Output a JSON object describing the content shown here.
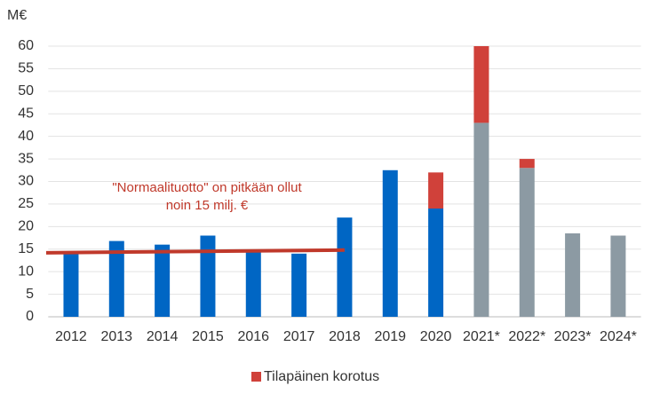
{
  "chart_data": {
    "type": "bar",
    "stacked": true,
    "y_label": "M€",
    "categories": [
      "2012",
      "2013",
      "2014",
      "2015",
      "2016",
      "2017",
      "2018",
      "2019",
      "2020",
      "2021*",
      "2022*",
      "2023*",
      "2024*"
    ],
    "series": [
      {
        "colors": [
          "#0066c4",
          "#0066c4",
          "#0066c4",
          "#0066c4",
          "#0066c4",
          "#0066c4",
          "#0066c4",
          "#0066c4",
          "#0066c4",
          "#8c9aa3",
          "#8c9aa3",
          "#8c9aa3",
          "#8c9aa3"
        ],
        "values": [
          14,
          16.8,
          16,
          18,
          14.5,
          14,
          22,
          32.5,
          24,
          43,
          33,
          18.5,
          18
        ]
      },
      {
        "name": "Tilapäinen korotus",
        "color": "#d0413a",
        "values": [
          null,
          null,
          null,
          null,
          null,
          null,
          null,
          null,
          8,
          17,
          2,
          null,
          null
        ]
      }
    ],
    "reference_line": {
      "x": [
        "2012",
        "2018"
      ],
      "values": [
        14.2,
        14.8
      ],
      "color": "#c0392b"
    },
    "annotation": [
      "\"Normaalituotto\" on pitkään ollut",
      "noin 15 milj. €"
    ],
    "ylim": [
      0,
      60
    ],
    "yticks": [
      0,
      5,
      10,
      15,
      20,
      25,
      30,
      35,
      40,
      45,
      50,
      55,
      60
    ],
    "grid": true,
    "legend": "bottom"
  }
}
